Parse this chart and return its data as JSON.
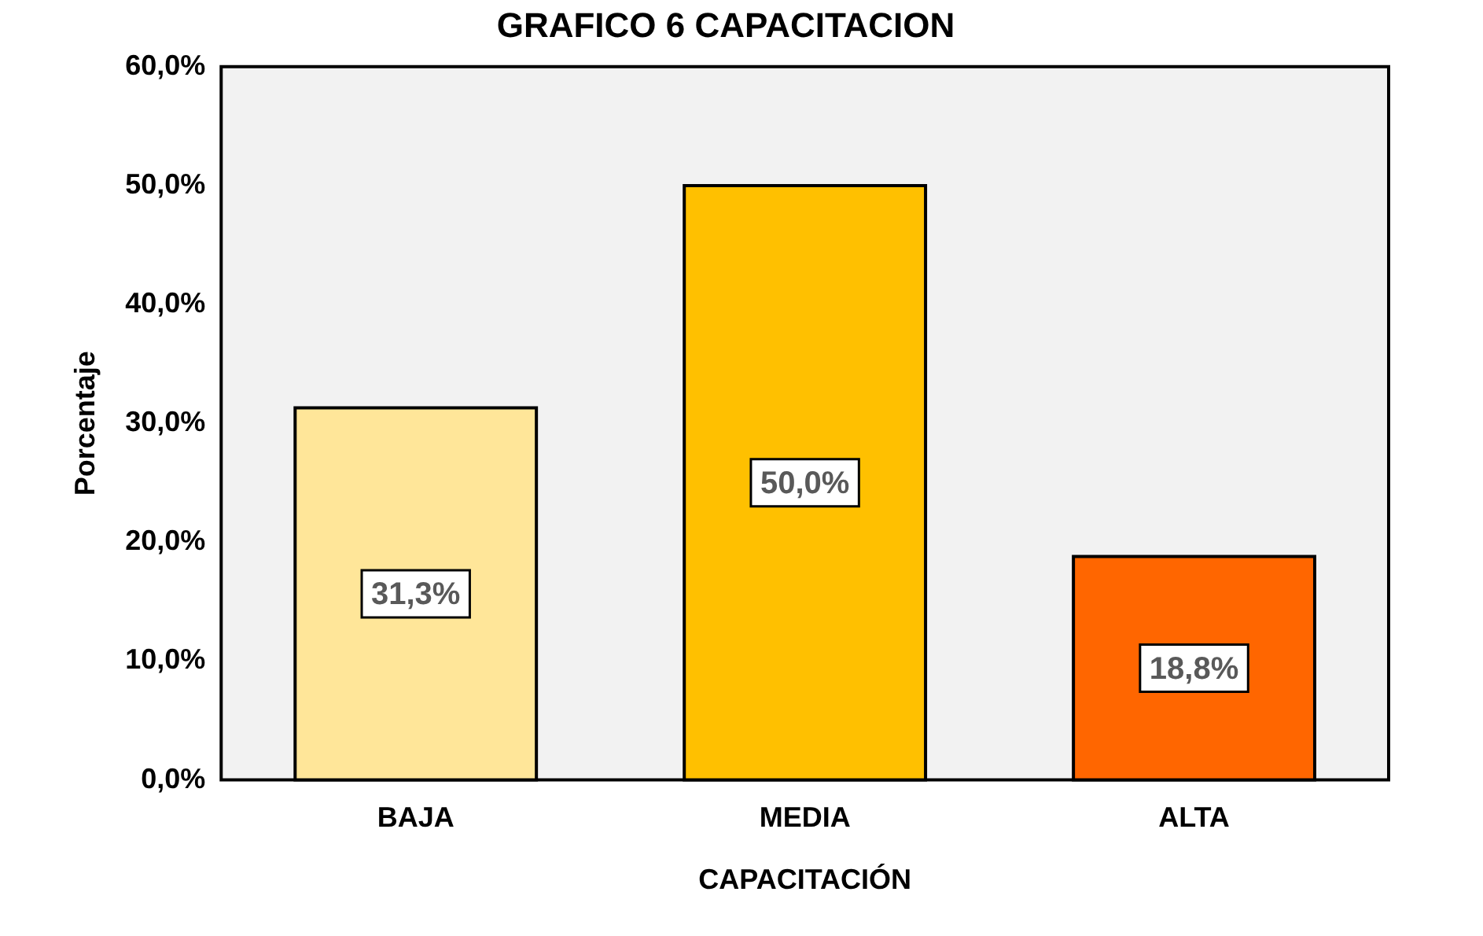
{
  "chart_data": {
    "type": "bar",
    "title": "GRAFICO 6 CAPACITACION",
    "xlabel": "CAPACITACIÓN",
    "ylabel": "Porcentaje",
    "categories": [
      "BAJA",
      "MEDIA",
      "ALTA"
    ],
    "values": [
      31.3,
      50.0,
      18.8
    ],
    "colors": [
      "#ffe699",
      "#ffc000",
      "#ff6600"
    ],
    "value_labels": [
      "31,3%",
      "50,0%",
      "18,8%"
    ],
    "ylim": [
      0,
      60
    ],
    "yticks": [
      {
        "value": 0,
        "label": "0,0%"
      },
      {
        "value": 10,
        "label": "10,0%"
      },
      {
        "value": 20,
        "label": "20,0%"
      },
      {
        "value": 30,
        "label": "30,0%"
      },
      {
        "value": 40,
        "label": "40,0%"
      },
      {
        "value": 50,
        "label": "50,0%"
      },
      {
        "value": 60,
        "label": "60,0%"
      }
    ],
    "grid": false,
    "legend": false
  }
}
